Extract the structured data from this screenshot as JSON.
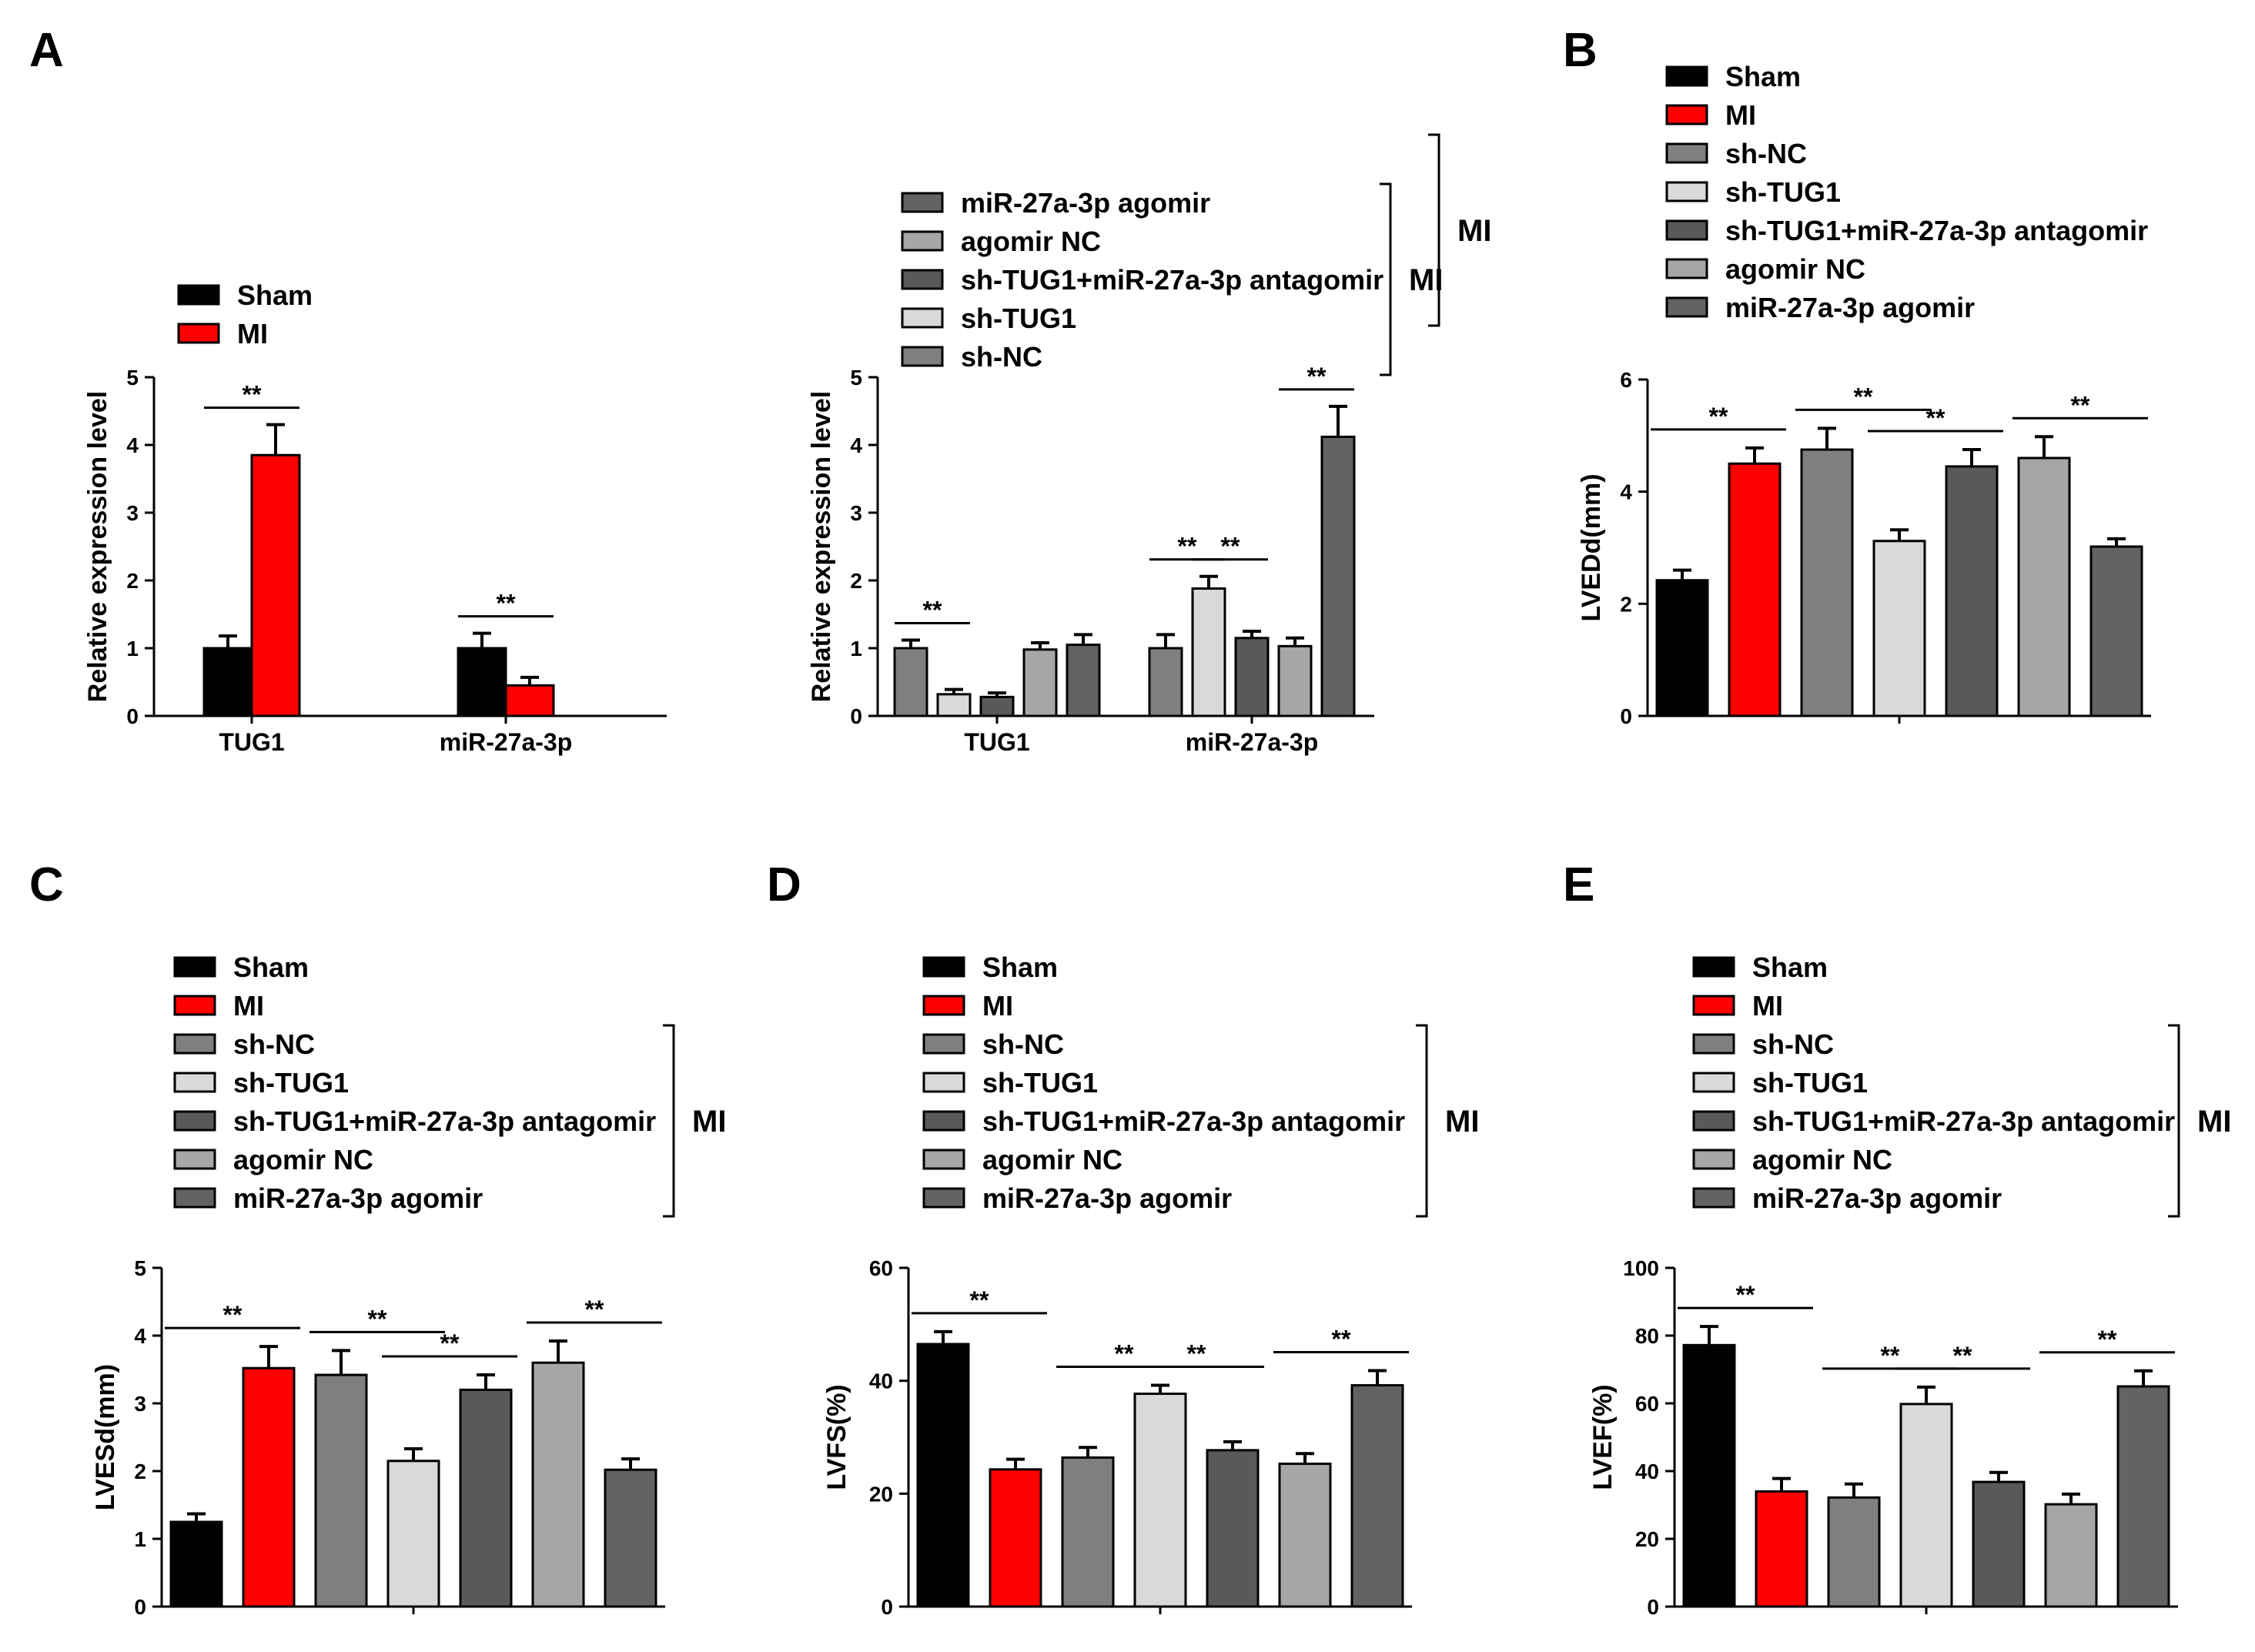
{
  "figure": {
    "panel_labels": [
      "A",
      "B",
      "C",
      "D",
      "E"
    ],
    "group_label": "MI"
  },
  "colors": {
    "Sham": "#000000",
    "MI": "#ff0000",
    "sh-NC": "#7f7f7f",
    "sh-TUG1": "#d9d9d9",
    "sh-TUG1+miR-27a-3p antagomir": "#595959",
    "agomir NC": "#a6a6a6",
    "miR-27a-3p agomir": "#636363"
  },
  "chart_data": [
    {
      "panel": "A",
      "type": "bar",
      "ylabel": "Relative expression level",
      "ylim": [
        0,
        5
      ],
      "yticks": [
        0,
        1,
        2,
        3,
        4,
        5
      ],
      "categories": [
        "TUG1",
        "miR-27a-3p"
      ],
      "legend": [
        "Sham",
        "MI"
      ],
      "series": [
        {
          "name": "Sham",
          "values": [
            1.0,
            1.0
          ],
          "errors": [
            0.18,
            0.22
          ]
        },
        {
          "name": "MI",
          "values": [
            3.85,
            0.45
          ],
          "errors": [
            0.45,
            0.12
          ]
        }
      ],
      "significance": [
        {
          "category": "TUG1",
          "between": [
            "Sham",
            "MI"
          ],
          "label": "**"
        },
        {
          "category": "miR-27a-3p",
          "between": [
            "Sham",
            "MI"
          ],
          "label": "**"
        }
      ]
    },
    {
      "panel": "A2",
      "type": "bar",
      "ylabel": "Relative expression level",
      "ylim": [
        0,
        5
      ],
      "yticks": [
        0,
        1,
        2,
        3,
        4,
        5
      ],
      "categories": [
        "TUG1",
        "miR-27a-3p"
      ],
      "legend": [
        "miR-27a-3p agomir",
        "agomir NC",
        "sh-TUG1+miR-27a-3p antagomir",
        "sh-TUG1",
        "sh-NC"
      ],
      "legend_group": "MI",
      "series": [
        {
          "name": "sh-NC",
          "values": [
            1.0,
            1.0
          ],
          "errors": [
            0.12,
            0.2
          ]
        },
        {
          "name": "sh-TUG1",
          "values": [
            0.32,
            1.88
          ],
          "errors": [
            0.07,
            0.18
          ]
        },
        {
          "name": "sh-TUG1+miR-27a-3p antagomir",
          "values": [
            0.28,
            1.15
          ],
          "errors": [
            0.06,
            0.1
          ]
        },
        {
          "name": "agomir NC",
          "values": [
            0.98,
            1.03
          ],
          "errors": [
            0.1,
            0.12
          ]
        },
        {
          "name": "miR-27a-3p agomir",
          "values": [
            1.05,
            4.12
          ],
          "errors": [
            0.15,
            0.45
          ]
        }
      ],
      "significance": [
        {
          "category": "TUG1",
          "between": [
            "sh-NC",
            "sh-TUG1"
          ],
          "label": "**"
        },
        {
          "category": "miR-27a-3p",
          "between": [
            "sh-NC",
            "sh-TUG1"
          ],
          "label": "**"
        },
        {
          "category": "miR-27a-3p",
          "between": [
            "sh-TUG1",
            "sh-TUG1+miR-27a-3p antagomir"
          ],
          "label": "**"
        },
        {
          "category": "miR-27a-3p",
          "between": [
            "agomir NC",
            "miR-27a-3p agomir"
          ],
          "label": "**"
        }
      ]
    },
    {
      "panel": "B",
      "type": "bar",
      "ylabel": "LVEDd(mm)",
      "ylim": [
        0,
        6
      ],
      "yticks": [
        0,
        2,
        4,
        6
      ],
      "categories": [
        "Sham",
        "MI",
        "sh-NC",
        "sh-TUG1",
        "sh-TUG1+miR-27a-3p antagomir",
        "agomir NC",
        "miR-27a-3p agomir"
      ],
      "legend": [
        "Sham",
        "MI",
        "sh-NC",
        "sh-TUG1",
        "sh-TUG1+miR-27a-3p antagomir",
        "agomir NC",
        "miR-27a-3p agomir"
      ],
      "legend_group": "MI",
      "values": [
        2.42,
        4.5,
        4.75,
        3.12,
        4.45,
        4.6,
        3.02
      ],
      "errors": [
        0.18,
        0.28,
        0.38,
        0.2,
        0.3,
        0.38,
        0.14
      ],
      "significance": [
        {
          "between": [
            0,
            1
          ],
          "label": "**"
        },
        {
          "between": [
            2,
            3
          ],
          "label": "**"
        },
        {
          "between": [
            3,
            4
          ],
          "label": "**"
        },
        {
          "between": [
            5,
            6
          ],
          "label": "**"
        }
      ]
    },
    {
      "panel": "C",
      "type": "bar",
      "ylabel": "LVESd(mm)",
      "ylim": [
        0,
        5
      ],
      "yticks": [
        0,
        1,
        2,
        3,
        4,
        5
      ],
      "categories": [
        "Sham",
        "MI",
        "sh-NC",
        "sh-TUG1",
        "sh-TUG1+miR-27a-3p antagomir",
        "agomir NC",
        "miR-27a-3p agomir"
      ],
      "legend": [
        "Sham",
        "MI",
        "sh-NC",
        "sh-TUG1",
        "sh-TUG1+miR-27a-3p antagomir",
        "agomir NC",
        "miR-27a-3p agomir"
      ],
      "legend_group": "MI",
      "values": [
        1.25,
        3.52,
        3.42,
        2.15,
        3.2,
        3.6,
        2.02
      ],
      "errors": [
        0.12,
        0.32,
        0.36,
        0.18,
        0.22,
        0.32,
        0.16
      ],
      "significance": [
        {
          "between": [
            0,
            1
          ],
          "label": "**"
        },
        {
          "between": [
            2,
            3
          ],
          "label": "**"
        },
        {
          "between": [
            3,
            4
          ],
          "label": "**"
        },
        {
          "between": [
            5,
            6
          ],
          "label": "**"
        }
      ]
    },
    {
      "panel": "D",
      "type": "bar",
      "ylabel": "LVFS(%)",
      "ylim": [
        0,
        60
      ],
      "yticks": [
        0,
        20,
        40,
        60
      ],
      "categories": [
        "Sham",
        "MI",
        "sh-NC",
        "sh-TUG1",
        "sh-TUG1+miR-27a-3p antagomir",
        "agomir NC",
        "miR-27a-3p agomir"
      ],
      "legend": [
        "Sham",
        "MI",
        "sh-NC",
        "sh-TUG1",
        "sh-TUG1+miR-27a-3p antagomir",
        "agomir NC",
        "miR-27a-3p agomir"
      ],
      "legend_group": "MI",
      "values": [
        46.5,
        24.3,
        26.4,
        37.7,
        27.7,
        25.3,
        39.2
      ],
      "errors": [
        2.2,
        1.8,
        1.8,
        1.5,
        1.5,
        1.8,
        2.6
      ],
      "significance": [
        {
          "between": [
            0,
            1
          ],
          "label": "**"
        },
        {
          "between": [
            2,
            3
          ],
          "label": "**"
        },
        {
          "between": [
            3,
            4
          ],
          "label": "**"
        },
        {
          "between": [
            5,
            6
          ],
          "label": "**"
        }
      ]
    },
    {
      "panel": "E",
      "type": "bar",
      "ylabel": "LVEF(%)",
      "ylim": [
        0,
        100
      ],
      "yticks": [
        0,
        20,
        40,
        60,
        80,
        100
      ],
      "categories": [
        "Sham",
        "MI",
        "sh-NC",
        "sh-TUG1",
        "sh-TUG1+miR-27a-3p antagomir",
        "agomir NC",
        "miR-27a-3p agomir"
      ],
      "legend": [
        "Sham",
        "MI",
        "sh-NC",
        "sh-TUG1",
        "sh-TUG1+miR-27a-3p antagomir",
        "agomir NC",
        "miR-27a-3p agomir"
      ],
      "legend_group": "MI",
      "values": [
        77.2,
        34.0,
        32.2,
        59.8,
        36.8,
        30.2,
        65.0
      ],
      "errors": [
        5.5,
        3.8,
        4.0,
        5.0,
        2.8,
        3.0,
        4.6
      ],
      "significance": [
        {
          "between": [
            0,
            1
          ],
          "label": "**"
        },
        {
          "between": [
            2,
            3
          ],
          "label": "**"
        },
        {
          "between": [
            3,
            4
          ],
          "label": "**"
        },
        {
          "between": [
            5,
            6
          ],
          "label": "**"
        }
      ]
    }
  ]
}
